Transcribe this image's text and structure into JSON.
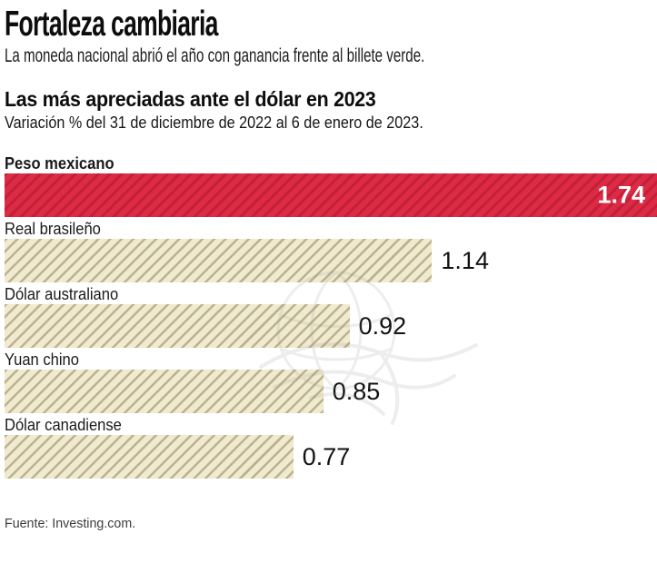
{
  "header": {
    "title": "Fortaleza cambiaria",
    "subtitle": "La moneda nacional abrió el año con ganancia frente al billete verde."
  },
  "footer": {
    "source": "Fuente: Investing.com."
  },
  "icons": {
    "watermark": "eagle-over-globe-watermark"
  },
  "colors": {
    "highlight_bar": "#dd2a45",
    "highlight_bar_hatch": "#c32039",
    "bar": "#f0ead0",
    "bar_hatch": "#bcb28e",
    "value_in_bar_text": "#ffffff",
    "text": "#111111"
  },
  "chart_data": {
    "type": "bar",
    "orientation": "horizontal",
    "title": "Las más apreciadas ante el dólar en 2023",
    "subtitle": "Variación % del 31 de diciembre de 2022 al 6 de enero de 2023.",
    "xlabel": "",
    "ylabel": "",
    "unit": "%",
    "xlim": [
      0,
      1.74
    ],
    "grid": false,
    "legend": false,
    "highlight_index": 0,
    "categories": [
      "Peso mexicano",
      "Real brasileño",
      "Dólar australiano",
      "Yuan chino",
      "Dólar canadiense"
    ],
    "values": [
      1.74,
      1.14,
      0.92,
      0.85,
      0.77
    ],
    "rows": [
      {
        "label": "Peso mexicano",
        "value": 1.74,
        "display_value": "1.74",
        "highlight": true
      },
      {
        "label": "Real brasileño",
        "value": 1.14,
        "display_value": "1.14",
        "highlight": false
      },
      {
        "label": "Dólar australiano",
        "value": 0.92,
        "display_value": "0.92",
        "highlight": false
      },
      {
        "label": "Yuan chino",
        "value": 0.85,
        "display_value": "0.85",
        "highlight": false
      },
      {
        "label": "Dólar canadiense",
        "value": 0.77,
        "display_value": "0.77",
        "highlight": false
      }
    ]
  }
}
